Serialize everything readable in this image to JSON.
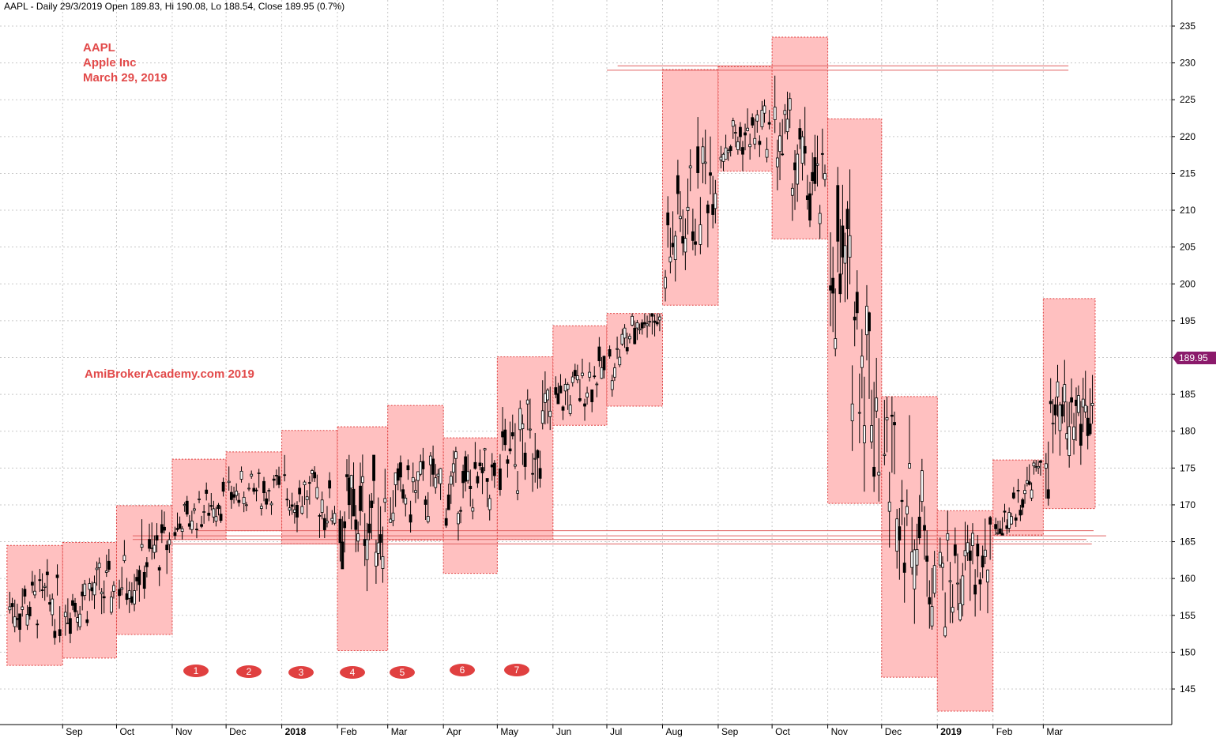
{
  "header": {
    "text": "AAPL - Daily 29/3/2019 Open 189.83, Hi 190.08, Lo 188.54, Close 189.95 (0.7%)"
  },
  "annotations": {
    "ticker": "AAPL",
    "company": "Apple Inc",
    "date": "March 29, 2019",
    "watermark": "AmiBrokerAcademy.com   2019"
  },
  "last_price": {
    "label": "189.95",
    "value": 189.95,
    "color": "#8b1a6b"
  },
  "colors": {
    "box_fill": "#ffc0c0",
    "box_border": "#e04040",
    "hline": "#e06060",
    "candle": "#000000",
    "marker": "#e04040",
    "grid": "#c8c8c8"
  },
  "markers": [
    "1",
    "2",
    "3",
    "4",
    "5",
    "6",
    "7"
  ],
  "chart_data": {
    "type": "candlestick",
    "title": "AAPL - Daily 29/3/2019 Open 189.83, Hi 190.08, Lo 188.54, Close 189.95 (0.7%)",
    "ylim": [
      140,
      237
    ],
    "y_ticks": [
      145,
      150,
      155,
      160,
      165,
      170,
      175,
      180,
      185,
      190,
      195,
      200,
      205,
      210,
      215,
      220,
      225,
      230,
      235
    ],
    "x_ticks": [
      {
        "label": "Sep",
        "date": "2017-09-01"
      },
      {
        "label": "Oct",
        "date": "2017-10-01"
      },
      {
        "label": "Nov",
        "date": "2017-11-01"
      },
      {
        "label": "Dec",
        "date": "2017-12-01"
      },
      {
        "label": "2018",
        "date": "2018-01-01",
        "bold": true
      },
      {
        "label": "Feb",
        "date": "2018-02-01"
      },
      {
        "label": "Mar",
        "date": "2018-03-01"
      },
      {
        "label": "Apr",
        "date": "2018-04-01"
      },
      {
        "label": "May",
        "date": "2018-05-01"
      },
      {
        "label": "Jun",
        "date": "2018-06-01"
      },
      {
        "label": "Jul",
        "date": "2018-07-01"
      },
      {
        "label": "Aug",
        "date": "2018-08-01"
      },
      {
        "label": "Sep",
        "date": "2018-09-01"
      },
      {
        "label": "Oct",
        "date": "2018-10-01"
      },
      {
        "label": "Nov",
        "date": "2018-11-01"
      },
      {
        "label": "Dec",
        "date": "2018-12-01"
      },
      {
        "label": "2019",
        "date": "2019-01-01",
        "bold": true
      },
      {
        "label": "Feb",
        "date": "2019-02-01"
      },
      {
        "label": "Mar",
        "date": "2019-03-01"
      }
    ],
    "date_range": [
      "2017-08-01",
      "2019-03-29"
    ],
    "monthly_ranges": [
      {
        "month": "2017-08",
        "high": 164.5,
        "low": 148.2
      },
      {
        "month": "2017-09",
        "high": 164.9,
        "low": 149.2
      },
      {
        "month": "2017-10",
        "high": 169.9,
        "low": 152.4
      },
      {
        "month": "2017-11",
        "high": 176.2,
        "low": 165.3
      },
      {
        "month": "2017-12",
        "high": 177.2,
        "low": 166.5
      },
      {
        "month": "2018-01",
        "high": 180.1,
        "low": 164.7
      },
      {
        "month": "2018-02",
        "high": 180.6,
        "low": 150.2
      },
      {
        "month": "2018-03",
        "high": 183.5,
        "low": 165.2
      },
      {
        "month": "2018-04",
        "high": 179.1,
        "low": 160.7
      },
      {
        "month": "2018-05",
        "high": 190.1,
        "low": 165.3
      },
      {
        "month": "2018-06",
        "high": 194.3,
        "low": 180.8
      },
      {
        "month": "2018-07",
        "high": 196.0,
        "low": 183.4
      },
      {
        "month": "2018-08",
        "high": 229.1,
        "low": 197.1
      },
      {
        "month": "2018-09",
        "high": 229.5,
        "low": 215.3
      },
      {
        "month": "2018-10",
        "high": 233.5,
        "low": 206.1
      },
      {
        "month": "2018-11",
        "high": 222.4,
        "low": 170.2
      },
      {
        "month": "2018-12",
        "high": 184.7,
        "low": 146.6
      },
      {
        "month": "2019-01",
        "high": 169.2,
        "low": 142.0
      },
      {
        "month": "2019-02",
        "high": 176.1,
        "low": 165.9
      },
      {
        "month": "2019-03",
        "high": 198.0,
        "low": 169.5
      }
    ],
    "horizontal_lines": [
      {
        "value": 229.0,
        "from": "2018-07-01",
        "to": "2019-03-15"
      },
      {
        "value": 229.6,
        "from": "2018-07-07",
        "to": "2019-03-15"
      },
      {
        "value": 166.5,
        "from": "2017-11-15",
        "to": "2019-03-29"
      },
      {
        "value": 165.8,
        "from": "2017-10-10",
        "to": "2019-04-05"
      },
      {
        "value": 165.3,
        "from": "2017-10-10",
        "to": "2019-03-25"
      },
      {
        "value": 164.7,
        "from": "2017-11-01",
        "to": "2019-03-28"
      }
    ],
    "last_close": 189.95
  }
}
